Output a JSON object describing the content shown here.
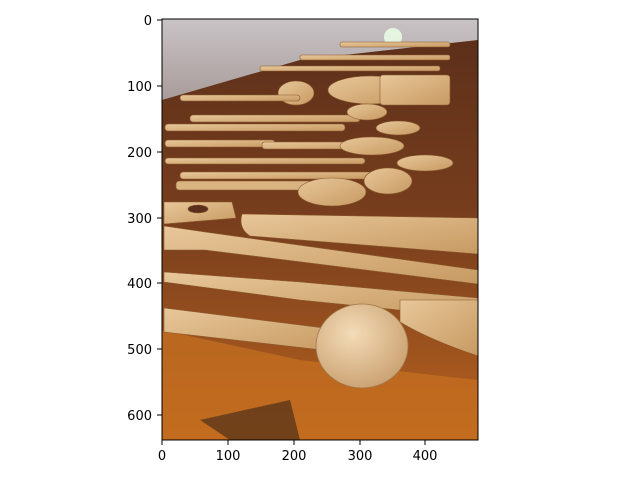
{
  "figure": {
    "x_ticks": [
      "0",
      "100",
      "200",
      "300",
      "400"
    ],
    "y_ticks": [
      "0",
      "100",
      "200",
      "300",
      "400",
      "500",
      "600"
    ],
    "x_range": [
      0,
      480
    ],
    "y_range": [
      640,
      0
    ],
    "image_description_icon": "wooden-utensils-photo"
  }
}
